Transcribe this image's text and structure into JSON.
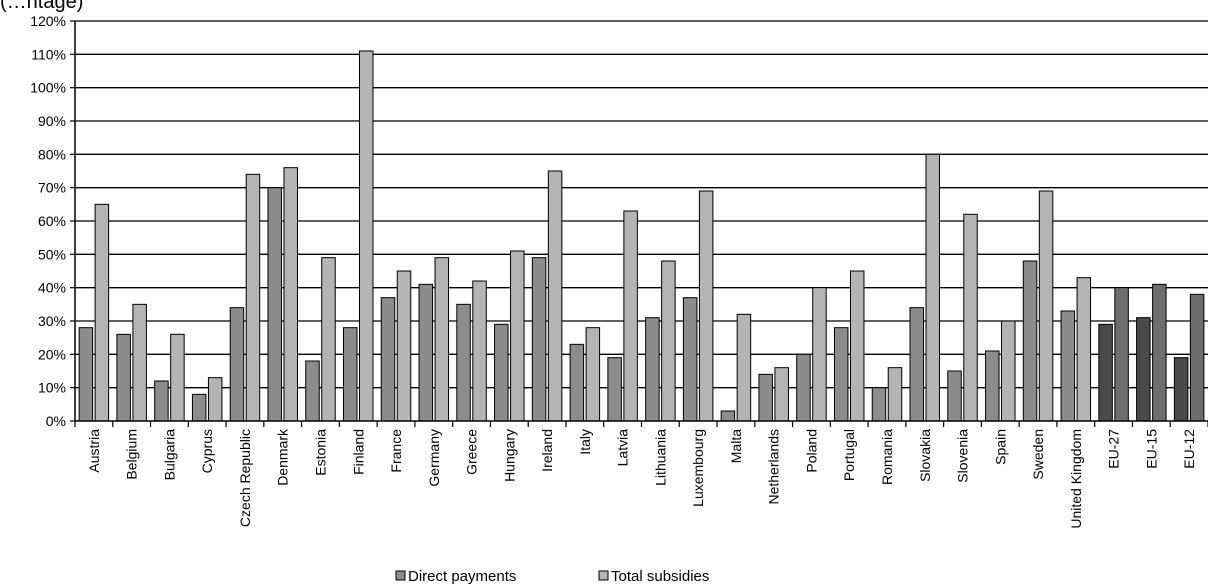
{
  "chart_data": {
    "type": "bar",
    "title_fragment": "(…ntage)",
    "categories": [
      "Austria",
      "Belgium",
      "Bulgaria",
      "Cyprus",
      "Czech Republic",
      "Denmark",
      "Estonia",
      "Finland",
      "France",
      "Germany",
      "Greece",
      "Hungary",
      "Ireland",
      "Italy",
      "Latvia",
      "Lithuania",
      "Luxembourg",
      "Malta",
      "Netherlands",
      "Poland",
      "Portugal",
      "Romania",
      "Slovakia",
      "Slovenia",
      "Spain",
      "Sweden",
      "United Kingdom",
      "EU-27",
      "EU-15",
      "EU-12"
    ],
    "highlighted_categories": [
      "EU-27",
      "EU-15",
      "EU-12"
    ],
    "series": [
      {
        "name": "Direct payments",
        "color": "#8c8c8c",
        "highlight_color": "#4a4a4a",
        "values": [
          28,
          26,
          12,
          8,
          34,
          70,
          18,
          28,
          37,
          41,
          35,
          29,
          49,
          23,
          19,
          31,
          37,
          3,
          14,
          20,
          28,
          10,
          34,
          15,
          21,
          48,
          33,
          29,
          31,
          19
        ]
      },
      {
        "name": "Total subsidies",
        "color": "#b4b4b4",
        "highlight_color": "#6e6e6e",
        "values": [
          65,
          35,
          26,
          13,
          74,
          76,
          49,
          111,
          45,
          49,
          42,
          51,
          75,
          28,
          63,
          48,
          69,
          32,
          16,
          40,
          45,
          16,
          80,
          62,
          30,
          69,
          43,
          40,
          41,
          38
        ]
      }
    ],
    "y_ticks": [
      "0%",
      "10%",
      "20%",
      "30%",
      "40%",
      "50%",
      "60%",
      "70%",
      "80%",
      "90%",
      "100%",
      "110%",
      "120%"
    ],
    "ylim": [
      0,
      120
    ],
    "y_unit": "%",
    "grid": true,
    "legend_position": "bottom-center"
  }
}
